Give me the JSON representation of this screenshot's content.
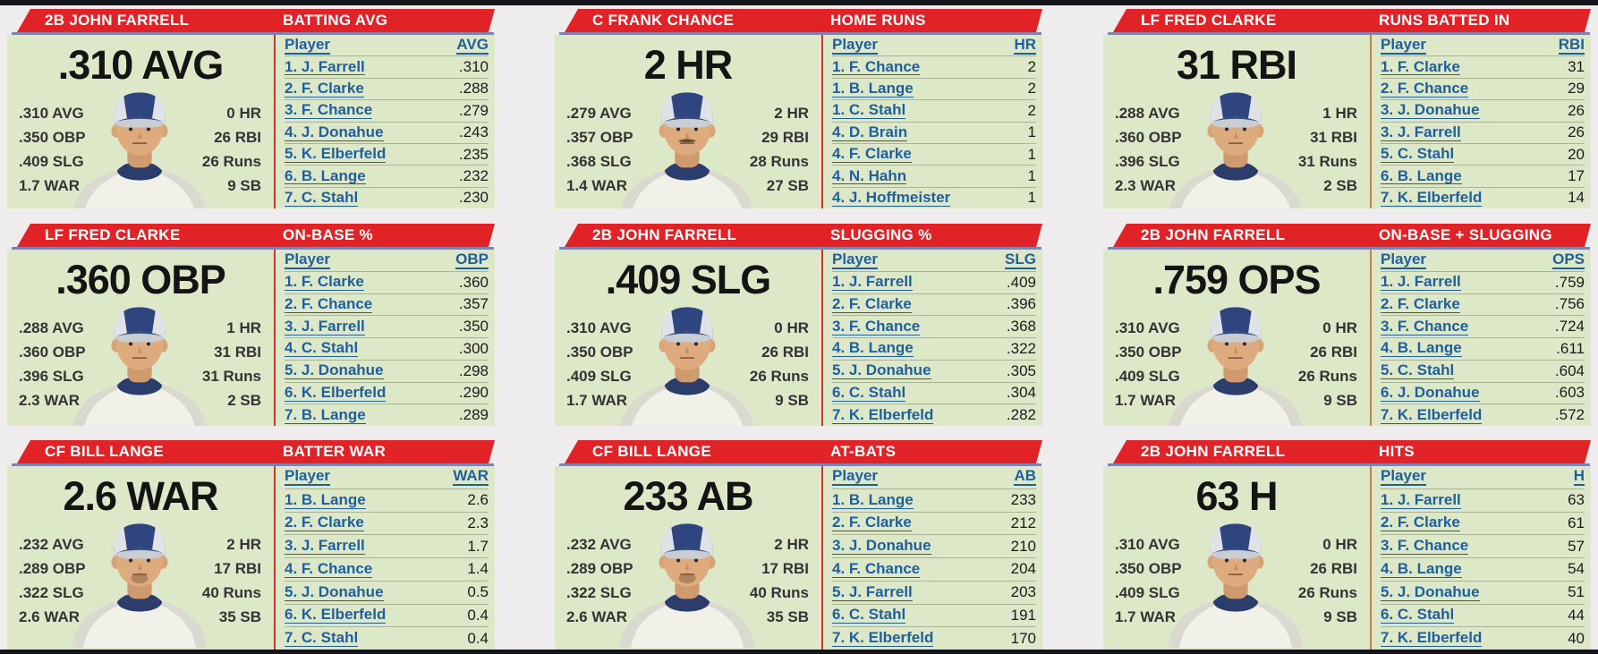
{
  "colors": {
    "background": "#efecee",
    "bar_dark": "#14141b",
    "banner_red": "#e12328",
    "banner_underline": "#8083b0",
    "panel_bg": "#dde8c9",
    "link_blue": "#1f5f9e",
    "divider_red": "#d2342c",
    "divider_orange": "#c8823e"
  },
  "panels": [
    {
      "player_header": "2B JOHN FARRELL",
      "stat_header": "BATTING AVG",
      "big_stat": ".310 AVG",
      "left_stats": [
        ".310 AVG",
        ".350 OBP",
        ".409 SLG",
        "1.7 WAR"
      ],
      "right_stats": [
        "0 HR",
        "26 RBI",
        "26 Runs",
        "9 SB"
      ],
      "divider_color": "#d2342c",
      "portrait": {
        "facial_hair": "none"
      },
      "leaderboard": {
        "name_col": "Player",
        "value_col": "AVG",
        "rows": [
          {
            "name": "1. J. Farrell",
            "value": ".310"
          },
          {
            "name": "2. F. Clarke",
            "value": ".288"
          },
          {
            "name": "3. F. Chance",
            "value": ".279"
          },
          {
            "name": "4. J. Donahue",
            "value": ".243"
          },
          {
            "name": "5. K. Elberfeld",
            "value": ".235"
          },
          {
            "name": "6. B. Lange",
            "value": ".232"
          },
          {
            "name": "7. C. Stahl",
            "value": ".230"
          }
        ]
      }
    },
    {
      "player_header": "C FRANK CHANCE",
      "stat_header": "HOME RUNS",
      "big_stat": "2 HR",
      "left_stats": [
        ".279 AVG",
        ".357 OBP",
        ".368 SLG",
        "1.4 WAR"
      ],
      "right_stats": [
        "2 HR",
        "29 RBI",
        "28 Runs",
        "27 SB"
      ],
      "divider_color": "#d2342c",
      "portrait": {
        "facial_hair": "mustache"
      },
      "leaderboard": {
        "name_col": "Player",
        "value_col": "HR",
        "rows": [
          {
            "name": "1. F. Chance",
            "value": "2"
          },
          {
            "name": "1. B. Lange",
            "value": "2"
          },
          {
            "name": "1. C. Stahl",
            "value": "2"
          },
          {
            "name": "4. D. Brain",
            "value": "1"
          },
          {
            "name": "4. F. Clarke",
            "value": "1"
          },
          {
            "name": "4. N. Hahn",
            "value": "1"
          },
          {
            "name": "4. J. Hoffmeister",
            "value": "1"
          }
        ]
      }
    },
    {
      "player_header": "LF FRED CLARKE",
      "stat_header": "RUNS BATTED IN",
      "big_stat": "31 RBI",
      "left_stats": [
        ".288 AVG",
        ".360 OBP",
        ".396 SLG",
        "2.3 WAR"
      ],
      "right_stats": [
        "1 HR",
        "31 RBI",
        "31 Runs",
        "2 SB"
      ],
      "divider_color": "#c8823e",
      "portrait": {
        "facial_hair": "none"
      },
      "leaderboard": {
        "name_col": "Player",
        "value_col": "RBI",
        "rows": [
          {
            "name": "1. F. Clarke",
            "value": "31"
          },
          {
            "name": "2. F. Chance",
            "value": "29"
          },
          {
            "name": "3. J. Donahue",
            "value": "26"
          },
          {
            "name": "3. J. Farrell",
            "value": "26"
          },
          {
            "name": "5. C. Stahl",
            "value": "20"
          },
          {
            "name": "6. B. Lange",
            "value": "17"
          },
          {
            "name": "7. K. Elberfeld",
            "value": "14"
          }
        ]
      }
    },
    {
      "player_header": "LF FRED CLARKE",
      "stat_header": "ON-BASE %",
      "big_stat": ".360 OBP",
      "left_stats": [
        ".288 AVG",
        ".360 OBP",
        ".396 SLG",
        "2.3 WAR"
      ],
      "right_stats": [
        "1 HR",
        "31 RBI",
        "31 Runs",
        "2 SB"
      ],
      "divider_color": "#d2342c",
      "portrait": {
        "facial_hair": "none"
      },
      "leaderboard": {
        "name_col": "Player",
        "value_col": "OBP",
        "rows": [
          {
            "name": "1. F. Clarke",
            "value": ".360"
          },
          {
            "name": "2. F. Chance",
            "value": ".357"
          },
          {
            "name": "3. J. Farrell",
            "value": ".350"
          },
          {
            "name": "4. C. Stahl",
            "value": ".300"
          },
          {
            "name": "5. J. Donahue",
            "value": ".298"
          },
          {
            "name": "6. K. Elberfeld",
            "value": ".290"
          },
          {
            "name": "7. B. Lange",
            "value": ".289"
          }
        ]
      }
    },
    {
      "player_header": "2B JOHN FARRELL",
      "stat_header": "SLUGGING %",
      "big_stat": ".409 SLG",
      "left_stats": [
        ".310 AVG",
        ".350 OBP",
        ".409 SLG",
        "1.7 WAR"
      ],
      "right_stats": [
        "0 HR",
        "26 RBI",
        "26 Runs",
        "9 SB"
      ],
      "divider_color": "#d2342c",
      "portrait": {
        "facial_hair": "none"
      },
      "leaderboard": {
        "name_col": "Player",
        "value_col": "SLG",
        "rows": [
          {
            "name": "1. J. Farrell",
            "value": ".409"
          },
          {
            "name": "2. F. Clarke",
            "value": ".396"
          },
          {
            "name": "3. F. Chance",
            "value": ".368"
          },
          {
            "name": "4. B. Lange",
            "value": ".322"
          },
          {
            "name": "5. J. Donahue",
            "value": ".305"
          },
          {
            "name": "6. C. Stahl",
            "value": ".304"
          },
          {
            "name": "7. K. Elberfeld",
            "value": ".282"
          }
        ]
      }
    },
    {
      "player_header": "2B JOHN FARRELL",
      "stat_header": "ON-BASE + SLUGGING",
      "big_stat": ".759 OPS",
      "left_stats": [
        ".310 AVG",
        ".350 OBP",
        ".409 SLG",
        "1.7 WAR"
      ],
      "right_stats": [
        "0 HR",
        "26 RBI",
        "26 Runs",
        "9 SB"
      ],
      "divider_color": "#c8823e",
      "portrait": {
        "facial_hair": "none"
      },
      "leaderboard": {
        "name_col": "Player",
        "value_col": "OPS",
        "rows": [
          {
            "name": "1. J. Farrell",
            "value": ".759"
          },
          {
            "name": "2. F. Clarke",
            "value": ".756"
          },
          {
            "name": "3. F. Chance",
            "value": ".724"
          },
          {
            "name": "4. B. Lange",
            "value": ".611"
          },
          {
            "name": "5. C. Stahl",
            "value": ".604"
          },
          {
            "name": "6. J. Donahue",
            "value": ".603"
          },
          {
            "name": "7. K. Elberfeld",
            "value": ".572"
          }
        ]
      }
    },
    {
      "player_header": "CF BILL LANGE",
      "stat_header": "BATTER WAR",
      "big_stat": "2.6 WAR",
      "left_stats": [
        ".232 AVG",
        ".289 OBP",
        ".322 SLG",
        "2.6 WAR"
      ],
      "right_stats": [
        "2 HR",
        "17 RBI",
        "40 Runs",
        "35 SB"
      ],
      "divider_color": "#d2342c",
      "portrait": {
        "facial_hair": "goatee"
      },
      "leaderboard": {
        "name_col": "Player",
        "value_col": "WAR",
        "rows": [
          {
            "name": "1. B. Lange",
            "value": "2.6"
          },
          {
            "name": "2. F. Clarke",
            "value": "2.3"
          },
          {
            "name": "3. J. Farrell",
            "value": "1.7"
          },
          {
            "name": "4. F. Chance",
            "value": "1.4"
          },
          {
            "name": "5. J. Donahue",
            "value": "0.5"
          },
          {
            "name": "6. K. Elberfeld",
            "value": "0.4"
          },
          {
            "name": "7. C. Stahl",
            "value": "0.4"
          }
        ]
      }
    },
    {
      "player_header": "CF BILL LANGE",
      "stat_header": "AT-BATS",
      "big_stat": "233 AB",
      "left_stats": [
        ".232 AVG",
        ".289 OBP",
        ".322 SLG",
        "2.6 WAR"
      ],
      "right_stats": [
        "2 HR",
        "17 RBI",
        "40 Runs",
        "35 SB"
      ],
      "divider_color": "#d2342c",
      "portrait": {
        "facial_hair": "goatee"
      },
      "leaderboard": {
        "name_col": "Player",
        "value_col": "AB",
        "rows": [
          {
            "name": "1. B. Lange",
            "value": "233"
          },
          {
            "name": "2. F. Clarke",
            "value": "212"
          },
          {
            "name": "3. J. Donahue",
            "value": "210"
          },
          {
            "name": "4. F. Chance",
            "value": "204"
          },
          {
            "name": "5. J. Farrell",
            "value": "203"
          },
          {
            "name": "6. C. Stahl",
            "value": "191"
          },
          {
            "name": "7. K. Elberfeld",
            "value": "170"
          }
        ]
      }
    },
    {
      "player_header": "2B JOHN FARRELL",
      "stat_header": "HITS",
      "big_stat": "63 H",
      "left_stats": [
        ".310 AVG",
        ".350 OBP",
        ".409 SLG",
        "1.7 WAR"
      ],
      "right_stats": [
        "0 HR",
        "26 RBI",
        "26 Runs",
        "9 SB"
      ],
      "divider_color": "#c8823e",
      "portrait": {
        "facial_hair": "none"
      },
      "leaderboard": {
        "name_col": "Player",
        "value_col": "H",
        "rows": [
          {
            "name": "1. J. Farrell",
            "value": "63"
          },
          {
            "name": "2. F. Clarke",
            "value": "61"
          },
          {
            "name": "3. F. Chance",
            "value": "57"
          },
          {
            "name": "4. B. Lange",
            "value": "54"
          },
          {
            "name": "5. J. Donahue",
            "value": "51"
          },
          {
            "name": "6. C. Stahl",
            "value": "44"
          },
          {
            "name": "7. K. Elberfeld",
            "value": "40"
          }
        ]
      }
    }
  ]
}
